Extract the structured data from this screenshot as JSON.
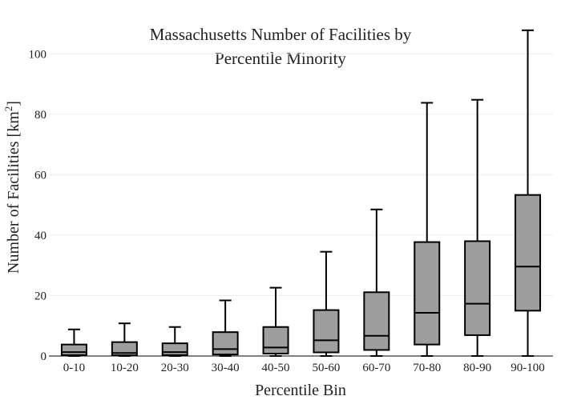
{
  "chart_data": {
    "type": "box",
    "title_line1": "Massachusetts Number of Facilities by",
    "title_line2": "Percentile Minority",
    "xlabel": "Percentile Bin",
    "ylabel_main": "Number of Facilities",
    "ylabel_unit_base": "km",
    "ylabel_unit_exp": "2",
    "ylim": [
      0,
      110
    ],
    "yticks": [
      0,
      20,
      40,
      60,
      80,
      100
    ],
    "grid": true,
    "box_color": "#9e9e9e",
    "categories": [
      "0-10",
      "10-20",
      "20-30",
      "30-40",
      "40-50",
      "50-60",
      "60-70",
      "70-80",
      "80-90",
      "90-100"
    ],
    "boxes": [
      {
        "min": 0,
        "q1": 0.3,
        "median": 1.3,
        "q3": 3.8,
        "max": 8.8
      },
      {
        "min": 0,
        "q1": 0.2,
        "median": 1.0,
        "q3": 4.6,
        "max": 10.8
      },
      {
        "min": 0,
        "q1": 0.3,
        "median": 1.3,
        "q3": 4.2,
        "max": 9.6
      },
      {
        "min": 0,
        "q1": 0.5,
        "median": 2.3,
        "q3": 7.9,
        "max": 18.4
      },
      {
        "min": 0,
        "q1": 0.8,
        "median": 2.8,
        "q3": 9.6,
        "max": 22.6
      },
      {
        "min": 0,
        "q1": 1.2,
        "median": 5.2,
        "q3": 15.2,
        "max": 34.5
      },
      {
        "min": 0,
        "q1": 2.0,
        "median": 6.7,
        "q3": 21.1,
        "max": 48.5
      },
      {
        "min": 0,
        "q1": 3.8,
        "median": 14.3,
        "q3": 37.7,
        "max": 83.8
      },
      {
        "min": 0,
        "q1": 6.9,
        "median": 17.3,
        "q3": 38.0,
        "max": 84.8
      },
      {
        "min": 0,
        "q1": 15.0,
        "median": 29.6,
        "q3": 53.3,
        "max": 107.8
      }
    ]
  }
}
